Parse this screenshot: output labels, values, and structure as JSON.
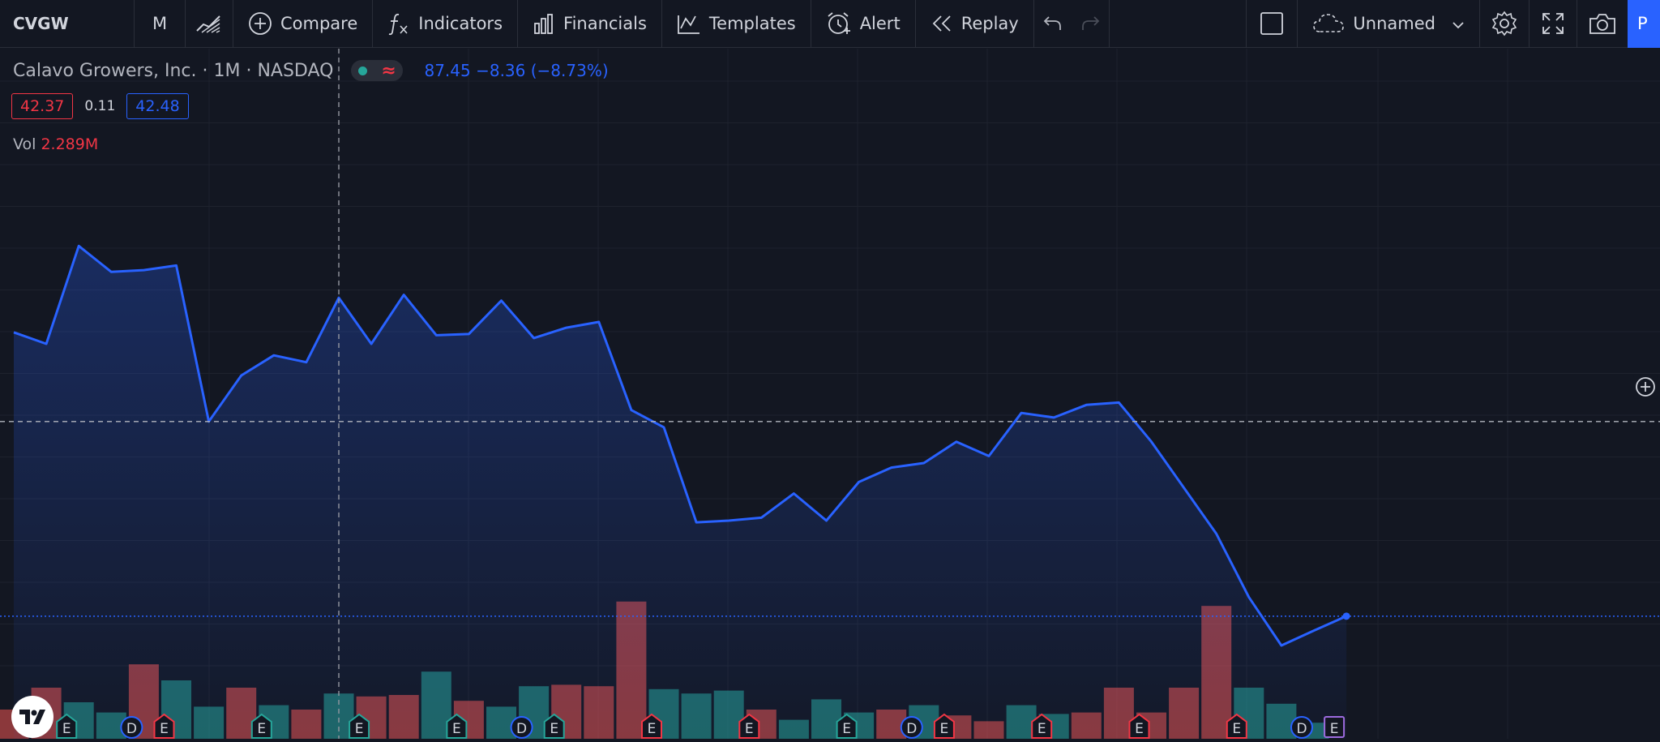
{
  "toolbar": {
    "symbol": "CVGW",
    "interval": "M",
    "compare_label": "Compare",
    "indicators_label": "Indicators",
    "financials_label": "Financials",
    "templates_label": "Templates",
    "alert_label": "Alert",
    "replay_label": "Replay",
    "layout_name": "Unnamed",
    "publish_label": "P"
  },
  "legend": {
    "title": "Calavo Growers, Inc. · 1M · NASDAQ",
    "quote": "87.45  −8.36 (−8.73%)",
    "bid": "42.37",
    "spread": "0.11",
    "ask": "42.48",
    "vol_label": "Vol",
    "vol_value": "2.289M"
  },
  "colors": {
    "background": "#131722",
    "line": "#2962ff",
    "up_volume": "#26a69a",
    "down_volume": "#ef5350",
    "grid": "#1e222d"
  },
  "chart_data": {
    "type": "line",
    "ylim": [
      0,
      100
    ],
    "grid": true,
    "series": [
      {
        "values": [
          62,
          60,
          77,
          72.5,
          72.8,
          73.6,
          46.5,
          54.5,
          58,
          56.8,
          68,
          60,
          68.5,
          61.5,
          61.7,
          67.5,
          61,
          62.8,
          63.8,
          48.5,
          45.5,
          29,
          29.3,
          29.8,
          34,
          29.3,
          36,
          38.5,
          39.3,
          43,
          40.5,
          48,
          47.2,
          49.4,
          49.8,
          43,
          35,
          27,
          16,
          7.6,
          10.2,
          12.7
        ]
      }
    ],
    "volume": {
      "values": [
        20,
        35,
        25,
        18,
        51,
        40,
        22,
        35,
        23,
        20,
        31,
        29,
        30,
        46,
        26,
        22,
        36,
        37,
        36,
        94,
        34,
        31,
        33,
        20,
        13,
        27,
        18,
        20,
        23,
        16,
        12,
        23,
        17,
        18,
        35,
        18,
        35,
        91,
        35,
        24,
        11,
        0
      ],
      "direction": [
        "down",
        "down",
        "up",
        "up",
        "down",
        "up",
        "up",
        "down",
        "up",
        "down",
        "up",
        "down",
        "down",
        "up",
        "down",
        "up",
        "up",
        "down",
        "down",
        "down",
        "up",
        "up",
        "up",
        "down",
        "up",
        "up",
        "up",
        "down",
        "up",
        "down",
        "down",
        "up",
        "up",
        "down",
        "down",
        "down",
        "down",
        "down",
        "up",
        "up",
        "up",
        "up"
      ]
    },
    "events": [
      {
        "index": 2,
        "type": "E",
        "kind": "earnings-past"
      },
      {
        "index": 4,
        "type": "D",
        "kind": "dividend"
      },
      {
        "index": 5,
        "type": "E",
        "kind": "earnings-miss"
      },
      {
        "index": 8,
        "type": "E",
        "kind": "earnings-past"
      },
      {
        "index": 11,
        "type": "E",
        "kind": "earnings-past"
      },
      {
        "index": 14,
        "type": "E",
        "kind": "earnings-past"
      },
      {
        "index": 16,
        "type": "D",
        "kind": "dividend"
      },
      {
        "index": 17,
        "type": "E",
        "kind": "earnings-past"
      },
      {
        "index": 20,
        "type": "E",
        "kind": "earnings-miss"
      },
      {
        "index": 23,
        "type": "E",
        "kind": "earnings-miss"
      },
      {
        "index": 26,
        "type": "E",
        "kind": "earnings-past"
      },
      {
        "index": 28,
        "type": "D",
        "kind": "dividend"
      },
      {
        "index": 29,
        "type": "E",
        "kind": "earnings-miss"
      },
      {
        "index": 32,
        "type": "E",
        "kind": "earnings-miss"
      },
      {
        "index": 35,
        "type": "E",
        "kind": "earnings-miss"
      },
      {
        "index": 38,
        "type": "E",
        "kind": "earnings-miss"
      },
      {
        "index": 40,
        "type": "D",
        "kind": "dividend"
      },
      {
        "index": 41,
        "type": "E",
        "kind": "earnings-upcoming"
      }
    ],
    "crosshair": {
      "index": 10,
      "value": 46.5
    },
    "last_price_value": 12.7
  }
}
